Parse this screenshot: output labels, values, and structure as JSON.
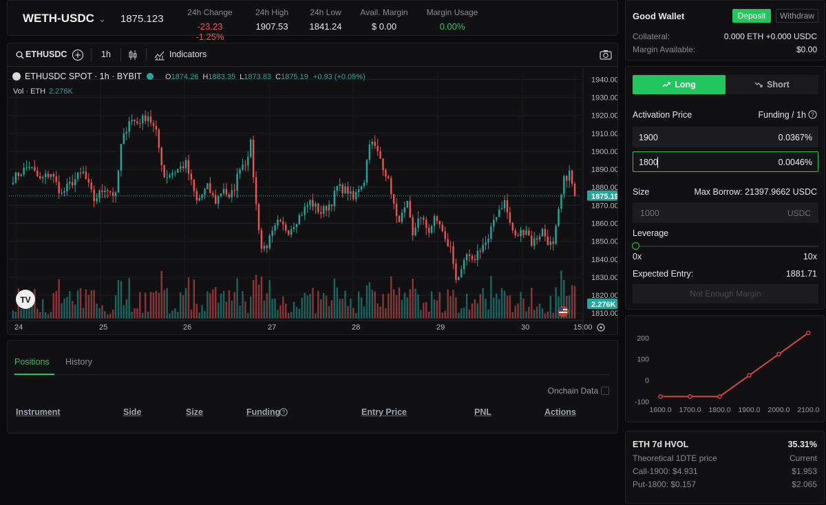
{
  "ticker": {
    "pair": "WETH-USDC",
    "last_price": "1875.123",
    "stats": [
      {
        "label": "24h Change",
        "value": "-23.23 -1.25%",
        "tone": "neg"
      },
      {
        "label": "24h High",
        "value": "1907.53",
        "tone": ""
      },
      {
        "label": "24h Low",
        "value": "1841.24",
        "tone": ""
      },
      {
        "label": "Avail. Margin",
        "value": "$ 0.00",
        "tone": ""
      },
      {
        "label": "Margin Usage",
        "value": "0.00%",
        "tone": "grn"
      }
    ]
  },
  "chart_toolbar": {
    "symbol": "ETHUSDC",
    "interval": "1h",
    "indicators_label": "Indicators"
  },
  "chart_legend": {
    "title": "ETHUSDC SPOT · 1h · BYBIT",
    "o_label": "O",
    "o": "1874.26",
    "h_label": "H",
    "h": "1883.35",
    "l_label": "L",
    "l": "1873.83",
    "c_label": "C",
    "c": "1875.19",
    "change": "+0.93 (+0.05%)",
    "vol_label": "Vol · ETH",
    "vol_value": "2.276K"
  },
  "chart_data": {
    "type": "candlestick",
    "title": "ETHUSDC SPOT · 1h · BYBIT",
    "y_ticks": [
      1940,
      1930,
      1920,
      1910,
      1900,
      1890,
      1880,
      1870,
      1860,
      1850,
      1840,
      1830,
      1820,
      1810
    ],
    "y_tick_labels": [
      "1940.00",
      "1930.00",
      "1920.00",
      "1910.00",
      "1900.00",
      "1890.00",
      "1880.00",
      "1870.00",
      "1860.00",
      "1850.00",
      "1840.00",
      "1830.00",
      "1820.00",
      "1810.00"
    ],
    "ylim": [
      1807,
      1944
    ],
    "x_labels": [
      "24",
      "25",
      "26",
      "27",
      "28",
      "29",
      "30",
      "15:00"
    ],
    "last_price_label": "1875.19",
    "last_price": 1875.19,
    "volume_label": "2.276K",
    "trend": [
      [
        0,
        1885
      ],
      [
        6,
        1892
      ],
      [
        10,
        1884
      ],
      [
        14,
        1888
      ],
      [
        18,
        1876
      ],
      [
        20,
        1880
      ],
      [
        24,
        1886
      ],
      [
        26,
        1888
      ],
      [
        30,
        1873
      ],
      [
        34,
        1880
      ],
      [
        38,
        1875
      ],
      [
        40,
        1903
      ],
      [
        43,
        1918
      ],
      [
        46,
        1916
      ],
      [
        50,
        1920
      ],
      [
        53,
        1910
      ],
      [
        56,
        1886
      ],
      [
        60,
        1889
      ],
      [
        64,
        1893
      ],
      [
        68,
        1872
      ],
      [
        70,
        1876
      ],
      [
        72,
        1880
      ],
      [
        75,
        1872
      ],
      [
        78,
        1880
      ],
      [
        80,
        1873
      ],
      [
        82,
        1880
      ],
      [
        84,
        1892
      ],
      [
        86,
        1894
      ],
      [
        88,
        1904
      ],
      [
        90,
        1870
      ],
      [
        92,
        1846
      ],
      [
        94,
        1848
      ],
      [
        98,
        1860
      ],
      [
        102,
        1856
      ],
      [
        106,
        1864
      ],
      [
        110,
        1872
      ],
      [
        114,
        1866
      ],
      [
        118,
        1872
      ],
      [
        120,
        1880
      ],
      [
        124,
        1878
      ],
      [
        126,
        1873
      ],
      [
        128,
        1880
      ],
      [
        130,
        1884
      ],
      [
        132,
        1906
      ],
      [
        134,
        1902
      ],
      [
        136,
        1896
      ],
      [
        138,
        1888
      ],
      [
        140,
        1878
      ],
      [
        142,
        1862
      ],
      [
        144,
        1864
      ],
      [
        146,
        1870
      ],
      [
        148,
        1852
      ],
      [
        150,
        1864
      ],
      [
        152,
        1860
      ],
      [
        154,
        1856
      ],
      [
        156,
        1862
      ],
      [
        158,
        1860
      ],
      [
        160,
        1850
      ],
      [
        162,
        1846
      ],
      [
        164,
        1830
      ],
      [
        166,
        1832
      ],
      [
        168,
        1842
      ],
      [
        170,
        1838
      ],
      [
        172,
        1844
      ],
      [
        174,
        1848
      ],
      [
        176,
        1850
      ],
      [
        178,
        1862
      ],
      [
        180,
        1868
      ],
      [
        182,
        1872
      ],
      [
        184,
        1860
      ],
      [
        186,
        1852
      ],
      [
        188,
        1855
      ],
      [
        190,
        1857
      ],
      [
        192,
        1849
      ],
      [
        194,
        1852
      ],
      [
        196,
        1856
      ],
      [
        198,
        1850
      ],
      [
        200,
        1847
      ],
      [
        202,
        1866
      ],
      [
        204,
        1884
      ],
      [
        206,
        1888
      ],
      [
        208,
        1875
      ]
    ]
  },
  "positions": {
    "tabs": [
      "Positions",
      "History"
    ],
    "onchain_label": "Onchain Data",
    "columns": [
      "Instrument",
      "Side",
      "Size",
      "Funding",
      "Entry Price",
      "PNL",
      "Actions"
    ]
  },
  "wallet": {
    "title": "Good Wallet",
    "deposit": "Deposit",
    "withdraw": "Withdraw",
    "collateral_label": "Collateral:",
    "collateral_value": "0.000 ETH +0.000 USDC",
    "margin_label": "Margin Available:",
    "margin_value": "$0.00"
  },
  "order": {
    "long": "Long",
    "short": "Short",
    "activation_label": "Activation Price",
    "funding_label": "Funding / 1h",
    "rows": [
      {
        "price": "1900",
        "funding": "0.0367%"
      },
      {
        "price": "1800",
        "funding": "0.0046%"
      }
    ],
    "size_label": "Size",
    "max_borrow": "Max Borrow: 21397.9662 USDC",
    "size_placeholder": "1000",
    "size_unit": "USDC",
    "leverage_label": "Leverage",
    "leverage_value": 0,
    "lev_min": "0x",
    "lev_max": "10x",
    "expected_label": "Expected Entry:",
    "expected_value": "1881.71",
    "submit": "Not Enough Margin"
  },
  "payoff": {
    "type": "line",
    "x": [
      1600,
      1700,
      1800,
      1900,
      2000,
      2100
    ],
    "x_labels": [
      "1600.0",
      "1700.0",
      "1800.0",
      "1900.0",
      "2000.0",
      "2100.0"
    ],
    "y": [
      -77,
      -77,
      -77,
      23,
      123,
      223
    ],
    "y_ticks": [
      200,
      100,
      0,
      -100
    ],
    "y_labels": [
      "200",
      "100",
      "0",
      "-100"
    ],
    "ylim": [
      -105,
      245
    ],
    "xlim": [
      1580,
      2120
    ],
    "color": "#d64545"
  },
  "hvol": {
    "title": "ETH 7d HVOL",
    "title_value": "35.31%",
    "sub_label": "Theoretical 1DTE price",
    "sub_value": "Current",
    "call_label": "Call-1900: $4.931",
    "call_value": "$1.953",
    "put_label": "Put-1800: $0.157",
    "put_value": "$2.065"
  },
  "colors": {
    "accent": "#22c55e",
    "up": "#26a69a",
    "down": "#ef5350",
    "panel": "#111114"
  }
}
